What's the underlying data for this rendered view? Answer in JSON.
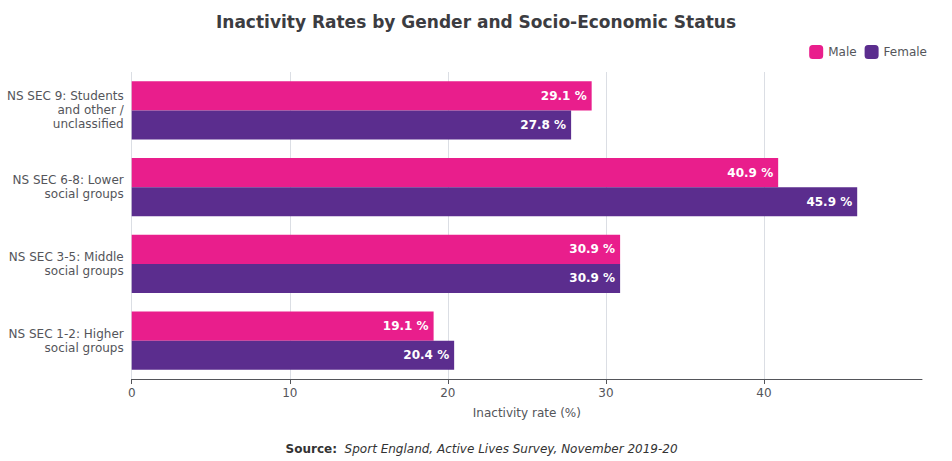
{
  "chart_data": {
    "type": "bar",
    "orientation": "horizontal",
    "title": "Inactivity Rates by Gender and Socio-Economic Status",
    "xlabel": "Inactivity rate (%)",
    "categories": [
      "NS SEC 9: Students\nand other /\nunclassified",
      "NS SEC 6-8: Lower\nsocial groups",
      "NS SEC 3-5: Middle\nsocial groups",
      "NS SEC 1-2: Higher\nsocial groups"
    ],
    "series": [
      {
        "name": "Male",
        "color": "#E91E8C",
        "values": [
          29.1,
          40.9,
          30.9,
          19.1
        ],
        "value_labels": [
          "29.1 %",
          "40.9 %",
          "30.9 %",
          "19.1 %"
        ]
      },
      {
        "name": "Female",
        "color": "#5B2D8E",
        "values": [
          27.8,
          45.9,
          30.9,
          20.4
        ],
        "value_labels": [
          "27.8 %",
          "45.9 %",
          "30.9 %",
          "20.4 %"
        ]
      }
    ],
    "xlim": [
      0,
      50
    ],
    "xticks": [
      0,
      10,
      20,
      30,
      40
    ],
    "grid": true,
    "legend": "upper right",
    "data_labels": true,
    "annotations": [
      "Source:",
      "  Sport England, Active Lives Survey, November 2019-20"
    ]
  }
}
